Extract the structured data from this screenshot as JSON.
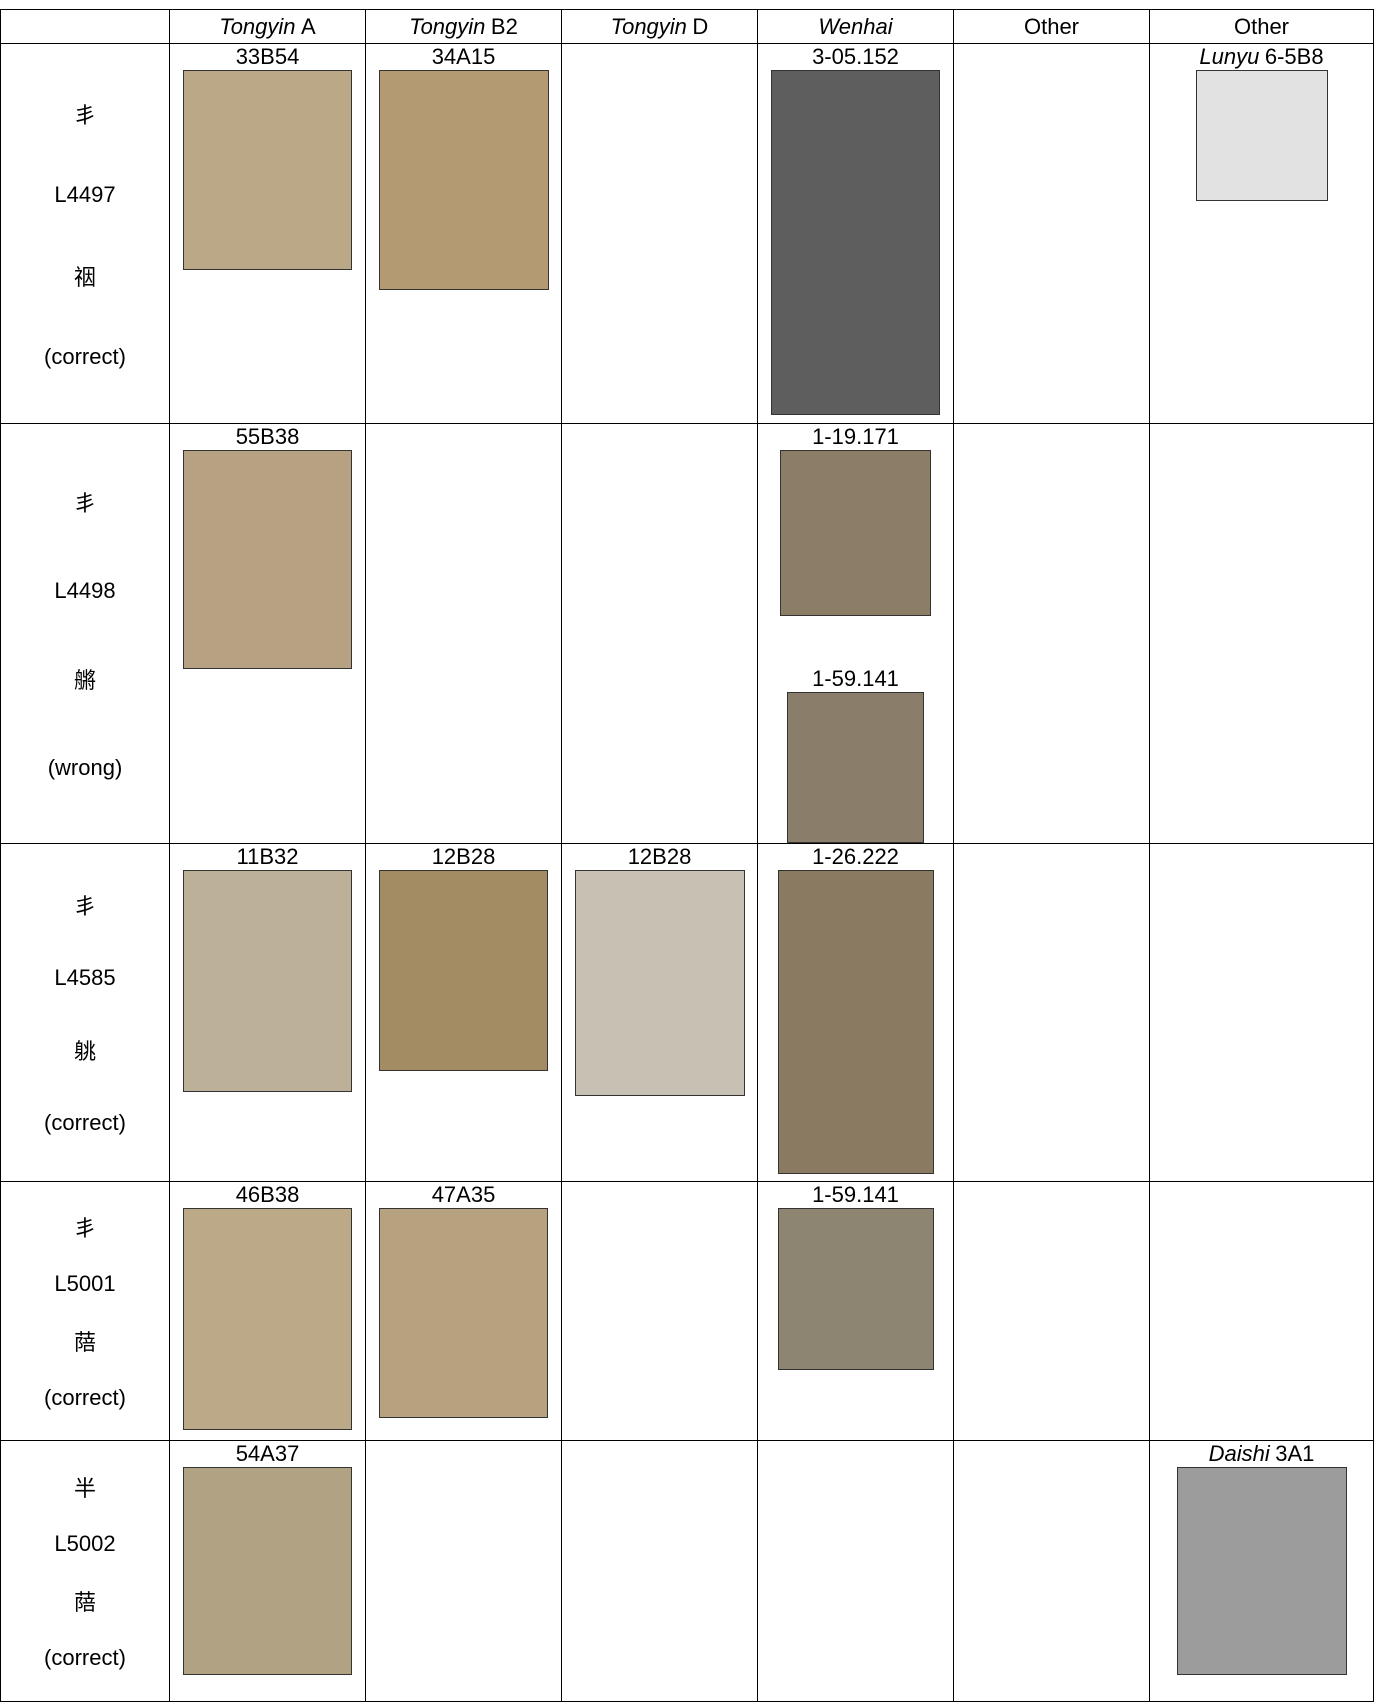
{
  "header": [
    {
      "italic": "Tongyin",
      "text": "A"
    },
    {
      "italic": "Tongyin",
      "text": "B2"
    },
    {
      "italic": "Tongyin",
      "text": "D"
    },
    {
      "italic": "Wenhai"
    },
    {
      "text": "Other"
    },
    {
      "text": "Other"
    }
  ],
  "rows": [
    {
      "radical": "丯",
      "code": "L4497",
      "character": "䄄",
      "status": "(correct)",
      "cells": [
        [
          {
            "label": "33B54"
          }
        ],
        [
          {
            "label": "34A15"
          }
        ],
        [],
        [
          {
            "label": "3-05.152"
          }
        ],
        [],
        [
          {
            "italic": "Lunyu",
            "label": "6-5B8"
          }
        ]
      ]
    },
    {
      "radical": "丯",
      "code": "L4498",
      "character": "䒂",
      "status": "(wrong)",
      "cells": [
        [
          {
            "label": "55B38"
          }
        ],
        [],
        [],
        [
          {
            "label": "1-19.171"
          },
          {
            "label": "1-59.141"
          }
        ],
        [],
        []
      ]
    },
    {
      "radical": "丯",
      "code": "L4585",
      "character": "䠷",
      "status": "(correct)",
      "cells": [
        [
          {
            "label": "11B32"
          }
        ],
        [
          {
            "label": "12B28"
          }
        ],
        [
          {
            "label": "12B28"
          }
        ],
        [
          {
            "label": "1-26.222"
          }
        ],
        [],
        []
      ]
    },
    {
      "radical": "丯",
      "code": "L5001",
      "character": "䔒",
      "status": "(correct)",
      "cells": [
        [
          {
            "label": "46B38"
          }
        ],
        [
          {
            "label": "47A35"
          }
        ],
        [],
        [
          {
            "label": "1-59.141"
          }
        ],
        [],
        []
      ]
    },
    {
      "radical": "半",
      "code": "L5002",
      "character": "䔒",
      "status": "(correct)",
      "cells": [
        [
          {
            "label": "54A37"
          }
        ],
        [],
        [],
        [],
        [],
        [
          {
            "italic": "Daishi",
            "label": "3A1"
          }
        ]
      ]
    }
  ]
}
